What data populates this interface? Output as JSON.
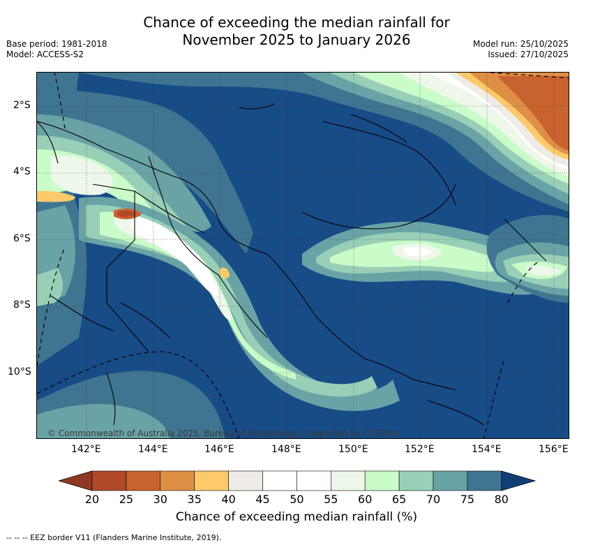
{
  "title_line1": "Chance of exceeding the median rainfall for",
  "title_line2": "November 2025 to January 2026",
  "meta_left": [
    "Base period: 1981-2018",
    "Model: ACCESS-S2"
  ],
  "meta_right": [
    "Model run: 25/10/2025",
    "Issued: 27/10/2025"
  ],
  "lat_labels": [
    "2°S",
    "4°S",
    "6°S",
    "8°S",
    "10°S"
  ],
  "lon_labels": [
    "142°E",
    "144°E",
    "146°E",
    "148°E",
    "150°E",
    "152°E",
    "154°E",
    "156°E"
  ],
  "copyright": "© Commonwealth of Australia 2025, Bureau of Meteorology, supported by COSPPac",
  "colorbar": {
    "ticks": [
      "20",
      "25",
      "30",
      "35",
      "40",
      "45",
      "50",
      "55",
      "60",
      "65",
      "70",
      "75",
      "80"
    ],
    "label": "Chance of exceeding median rainfall (%)",
    "colors": [
      "#b04a2b",
      "#c8622f",
      "#de8f45",
      "#fdca6a",
      "#efebe7",
      "#ffffff",
      "#ffffff",
      "#edf7ea",
      "#c9fcc8",
      "#99cfb6",
      "#6aa3a6",
      "#3f7590",
      "#174c86"
    ],
    "low_color": "#8e3a22",
    "high_color": "#0f3f75"
  },
  "eez_note": "--  --  -- EEZ border V11 (Flanders Marine Institute, 2019)."
}
